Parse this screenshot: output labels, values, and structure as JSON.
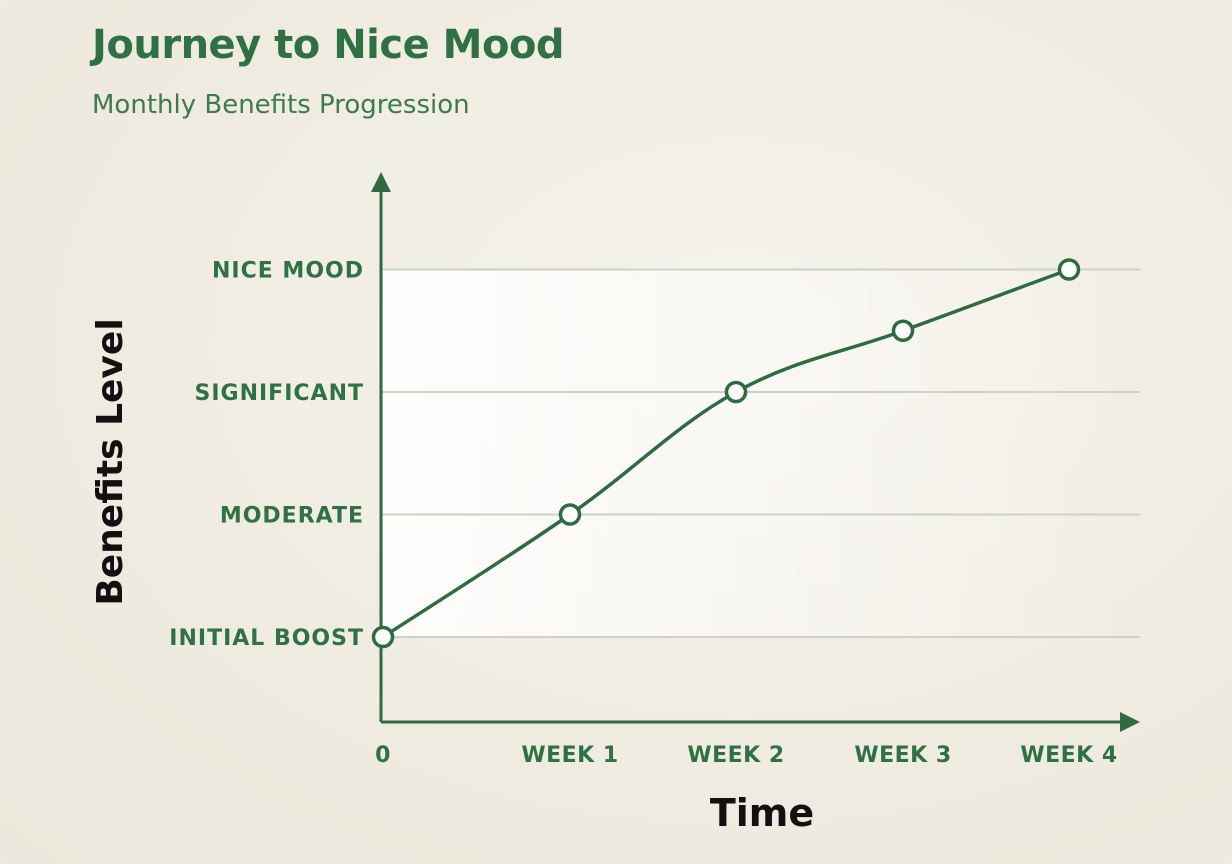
{
  "chart_data": {
    "type": "line",
    "title": "Journey to Nice Mood",
    "subtitle": "Monthly Benefits Progression",
    "xlabel": "Time",
    "ylabel": "Benefits Level",
    "categories": [
      "0",
      "WEEK 1",
      "WEEK 2",
      "WEEK 3",
      "WEEK 4"
    ],
    "y_levels": [
      "INITIAL BOOST",
      "MODERATE",
      "SIGNIFICANT",
      "NICE MOOD"
    ],
    "x": [
      0,
      1,
      2,
      3,
      4
    ],
    "values": [
      0,
      1,
      2,
      2.5,
      3
    ],
    "ylim": [
      -0.7,
      3.8
    ],
    "grid": true,
    "colors": {
      "line": "#2e6b40",
      "accent": "#2f7142",
      "grid": "#c9d4c9",
      "axis": "#2e6b40",
      "marker_fill": "#ffffff"
    }
  }
}
